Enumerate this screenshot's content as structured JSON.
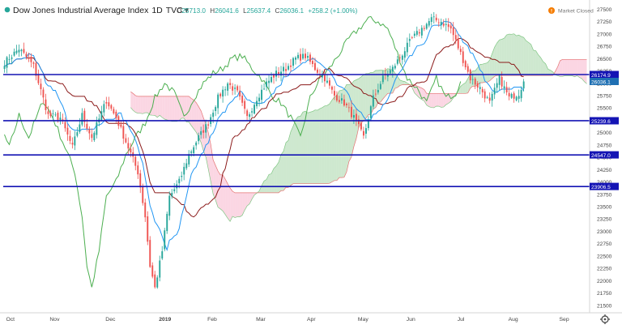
{
  "header": {
    "symbol_title": "Dow Jones Industrial Average Index",
    "interval": "1D",
    "source": "TVC",
    "dropdown_glyph": "▾",
    "ohlc": [
      {
        "label": "O",
        "value": "25713.0"
      },
      {
        "label": "H",
        "value": "26041.6"
      },
      {
        "label": "L",
        "value": "25637.4"
      },
      {
        "label": "C",
        "value": "26036.1"
      }
    ],
    "change": "+258.2 (+1.00%)",
    "market_status": "Market Closed",
    "market_status_icon": "info-clock-icon"
  },
  "colors": {
    "up": "#26a69a",
    "down": "#ef5350",
    "tenkan": "#2196f3",
    "kijun": "#8b1a1a",
    "chikou": "#4caf50",
    "cloud_bull": "#a5d6a7",
    "cloud_bear": "#f8bbd0",
    "level_lines": "#1414b4",
    "price_tag_bg": "#1f70b3",
    "status_orange": "#f57c00"
  },
  "chart_data": {
    "type": "candlestick-ichimoku",
    "instrument": "Dow Jones Industrial Average Index",
    "timeframe": "1D",
    "x_ticks": [
      "Oct",
      "Nov",
      "Dec",
      "2019",
      "Feb",
      "Mar",
      "Apr",
      "May",
      "Jun",
      "Jul",
      "Aug",
      "Sep",
      "Oct"
    ],
    "y_ticks": [
      27500,
      27250,
      27000,
      26750,
      26500,
      26250,
      26000,
      25750,
      25500,
      25250,
      25000,
      24750,
      24500,
      24250,
      24000,
      23750,
      23500,
      23250,
      23000,
      22750,
      22500,
      22250,
      22000,
      21750,
      21500
    ],
    "ylim": [
      21380,
      27620
    ],
    "support_resistance_levels": [
      {
        "value": 26174.9,
        "label": "26174.9"
      },
      {
        "value": 25239.6,
        "label": "25239.6"
      },
      {
        "value": 24547.0,
        "label": "24547.0"
      },
      {
        "value": 23906.5,
        "label": "23906.5"
      }
    ],
    "last_price": {
      "value": 26036.1,
      "label": "26036.1"
    },
    "price_anchors": [
      [
        0,
        26420
      ],
      [
        6,
        26700
      ],
      [
        12,
        26350
      ],
      [
        18,
        25350
      ],
      [
        23,
        25300
      ],
      [
        28,
        24700
      ],
      [
        32,
        25350
      ],
      [
        36,
        24900
      ],
      [
        42,
        25650
      ],
      [
        46,
        25300
      ],
      [
        51,
        24700
      ],
      [
        55,
        24200
      ],
      [
        58,
        23300
      ],
      [
        60,
        22300
      ],
      [
        62,
        21850
      ],
      [
        65,
        22600
      ],
      [
        68,
        23700
      ],
      [
        72,
        24000
      ],
      [
        76,
        24550
      ],
      [
        80,
        24900
      ],
      [
        84,
        25200
      ],
      [
        88,
        25700
      ],
      [
        92,
        26000
      ],
      [
        96,
        25800
      ],
      [
        100,
        25300
      ],
      [
        104,
        25700
      ],
      [
        108,
        26000
      ],
      [
        112,
        26200
      ],
      [
        116,
        26300
      ],
      [
        120,
        26500
      ],
      [
        124,
        26550
      ],
      [
        128,
        26300
      ],
      [
        132,
        26100
      ],
      [
        136,
        25750
      ],
      [
        140,
        25600
      ],
      [
        144,
        25300
      ],
      [
        148,
        24900
      ],
      [
        152,
        25700
      ],
      [
        156,
        26100
      ],
      [
        160,
        26300
      ],
      [
        164,
        26600
      ],
      [
        168,
        26900
      ],
      [
        172,
        27100
      ],
      [
        176,
        27300
      ],
      [
        180,
        27250
      ],
      [
        184,
        27100
      ],
      [
        188,
        26600
      ],
      [
        192,
        26100
      ],
      [
        196,
        25900
      ],
      [
        200,
        25600
      ],
      [
        204,
        26100
      ],
      [
        208,
        25700
      ],
      [
        212,
        25800
      ],
      [
        214,
        26036
      ]
    ]
  }
}
